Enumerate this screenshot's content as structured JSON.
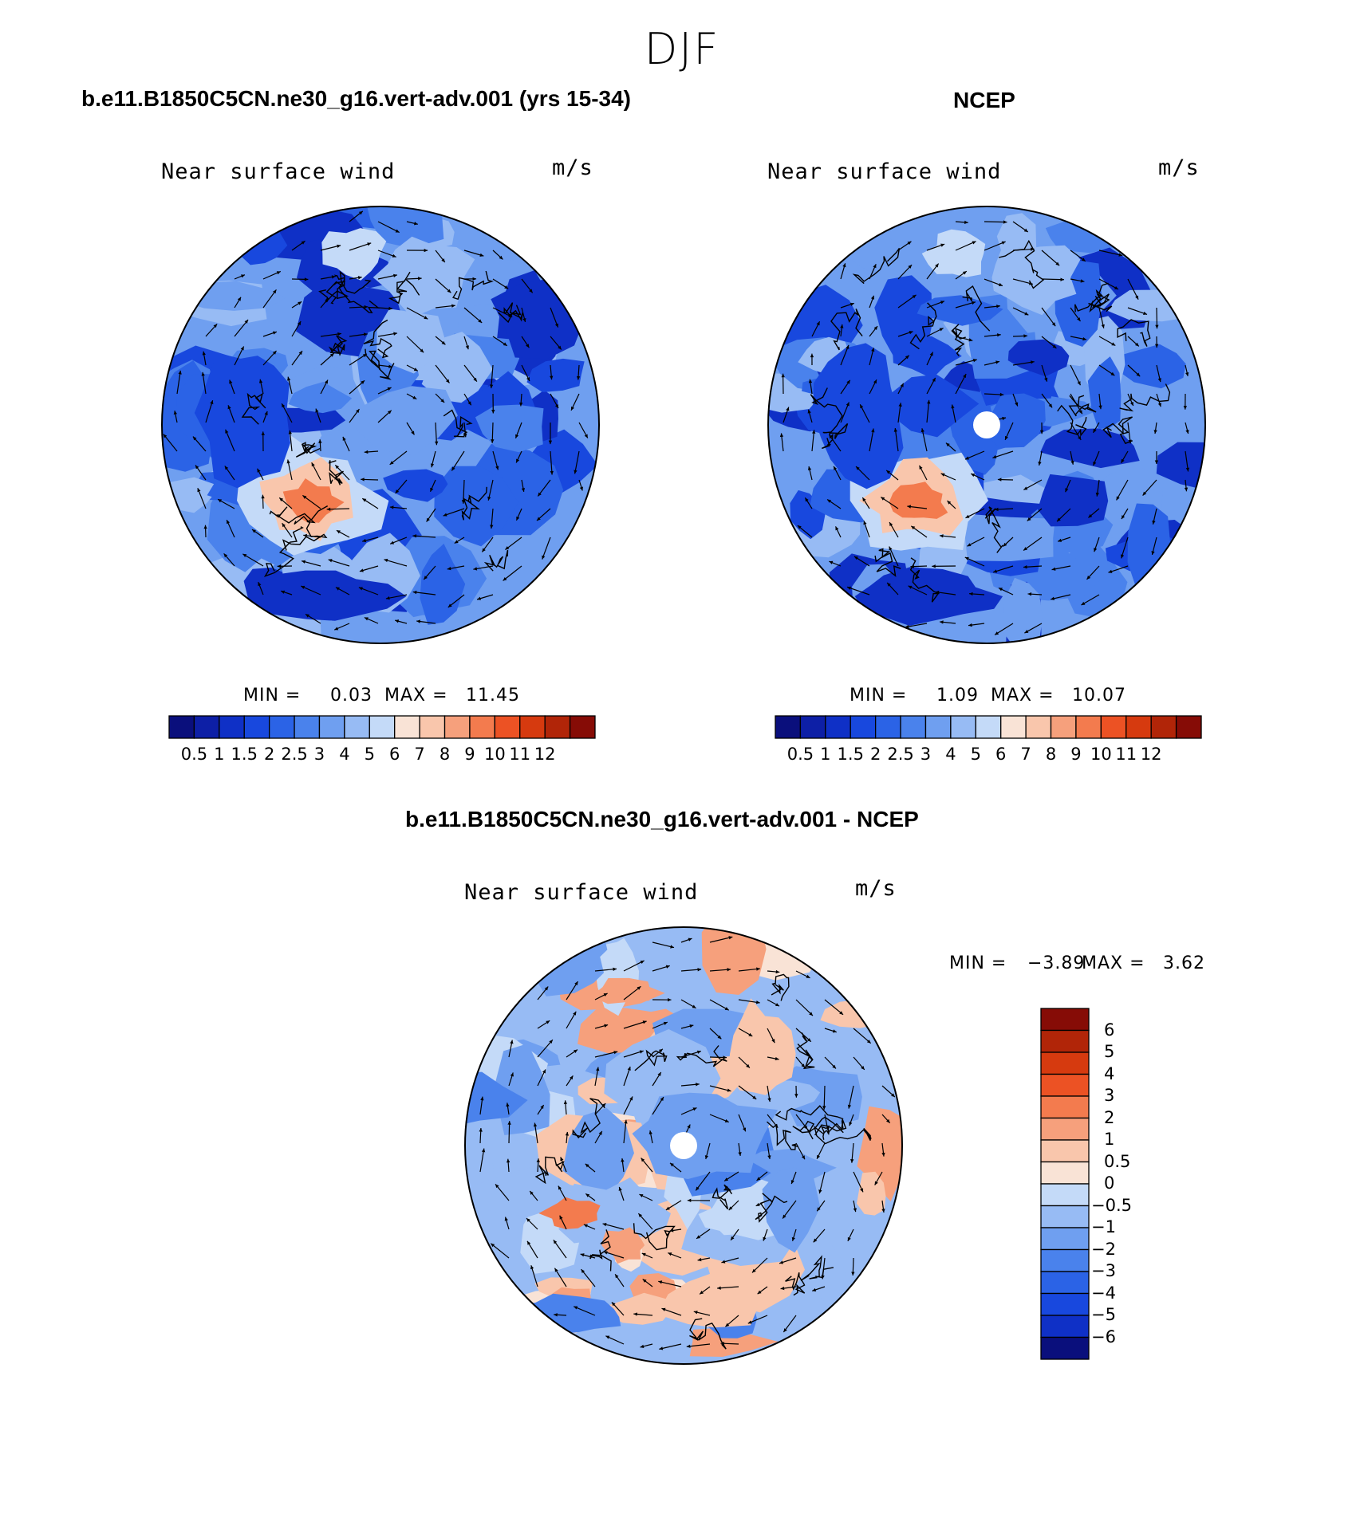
{
  "figure": {
    "season": "DJF",
    "panels": [
      {
        "id": "model",
        "case_title": "b.e11.B1850C5CN.ne30_g16.vert-adv.001 (yrs 15-34)",
        "variable": "Near surface wind",
        "units": "m/s",
        "min_label": "MIN =",
        "min_value": "0.03",
        "max_label": "MAX =",
        "max_value": "11.45",
        "has_pole_hole": false,
        "palette": "abs",
        "base_level": 3.2
      },
      {
        "id": "obs",
        "case_title": "NCEP",
        "variable": "Near surface wind",
        "units": "m/s",
        "min_label": "MIN =",
        "min_value": "1.09",
        "max_label": "MAX =",
        "max_value": "10.07",
        "has_pole_hole": true,
        "palette": "abs",
        "base_level": 3.6
      },
      {
        "id": "diff",
        "case_title": "b.e11.B1850C5CN.ne30_g16.vert-adv.001 - NCEP",
        "variable": "Near surface wind",
        "units": "m/s",
        "min_label": "MIN =",
        "min_value": "−3.89",
        "max_label": "MAX =",
        "max_value": "3.62",
        "has_pole_hole": true,
        "palette": "diff",
        "base_level": -0.6
      }
    ],
    "colorbar_abs": {
      "tick_labels": [
        "0.5",
        "1",
        "1.5",
        "2",
        "2.5",
        "3",
        "4",
        "5",
        "6",
        "7",
        "8",
        "9",
        "10",
        "11",
        "12"
      ],
      "colors": [
        "#0a0f7c",
        "#0d1fa6",
        "#0f30c6",
        "#1848de",
        "#2b63e6",
        "#4a82ec",
        "#6f9ff0",
        "#97bbf4",
        "#c4daf8",
        "#f9e3d6",
        "#f9c6ac",
        "#f6a07c",
        "#f37b4e",
        "#ec5224",
        "#d63a0f",
        "#b12508",
        "#860c06"
      ]
    },
    "colorbar_diff": {
      "tick_labels": [
        "6",
        "5",
        "4",
        "3",
        "2",
        "1",
        "0.5",
        "0",
        "−0.5",
        "−1",
        "−2",
        "−3",
        "−4",
        "−5",
        "−6"
      ],
      "colors": [
        "#860c06",
        "#b12508",
        "#d63a0f",
        "#ec5224",
        "#f37b4e",
        "#f6a07c",
        "#f9c6ac",
        "#f9e3d6",
        "#c4daf8",
        "#97bbf4",
        "#6f9ff0",
        "#4a82ec",
        "#2b63e6",
        "#1848de",
        "#0f30c6",
        "#0a0f7c"
      ]
    }
  }
}
